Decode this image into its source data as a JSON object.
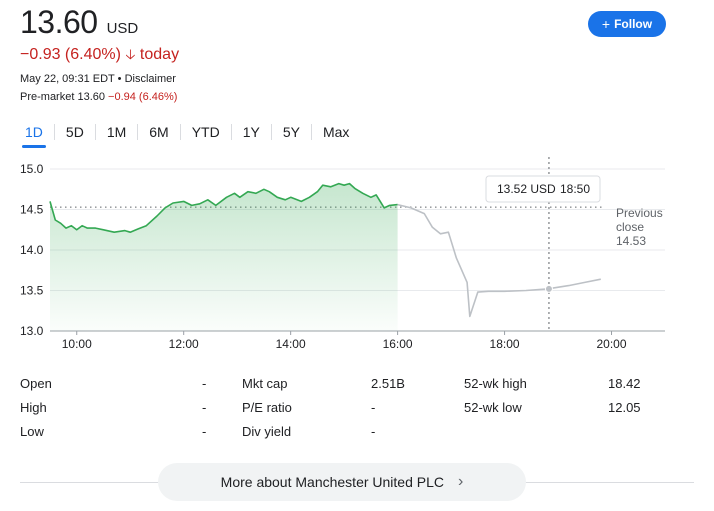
{
  "header": {
    "price": "13.60",
    "currency": "USD",
    "change": "−0.93 (6.40%)",
    "change_arrow": "🡣",
    "change_period": "today",
    "timestamp": "May 22, 09:31 EDT",
    "disclaimer": "Disclaimer",
    "premarket_label": "Pre-market 13.60",
    "premarket_change": "−0.94 (6.46%)",
    "follow_label": "Follow"
  },
  "tabs": [
    {
      "label": "1D",
      "active": true
    },
    {
      "label": "5D",
      "active": false
    },
    {
      "label": "1M",
      "active": false
    },
    {
      "label": "6M",
      "active": false
    },
    {
      "label": "YTD",
      "active": false
    },
    {
      "label": "1Y",
      "active": false
    },
    {
      "label": "5Y",
      "active": false
    },
    {
      "label": "Max",
      "active": false
    }
  ],
  "chart_data": {
    "type": "line",
    "ylim": [
      13.0,
      15.0
    ],
    "yticks": [
      "13.0",
      "13.5",
      "14.0",
      "14.5",
      "15.0"
    ],
    "xlim": [
      9.5,
      21.0
    ],
    "xticks": [
      {
        "value": 10,
        "label": "10:00"
      },
      {
        "value": 12,
        "label": "12:00"
      },
      {
        "value": 14,
        "label": "14:00"
      },
      {
        "value": 16,
        "label": "16:00"
      },
      {
        "value": 18,
        "label": "18:00"
      },
      {
        "value": 20,
        "label": "20:00"
      }
    ],
    "grid": "horizontal",
    "previous_close": {
      "value": 14.53,
      "label_lines": [
        "Previous",
        "close",
        "14.53"
      ]
    },
    "tooltip": {
      "price": "13.52 USD",
      "time": "18:50",
      "x": 18.83,
      "y": 13.52
    },
    "colors": {
      "regular": "#34a853",
      "regular_fill": "#e6f4ea",
      "after_hours": "#bdc1c6"
    },
    "series": [
      {
        "session": "regular",
        "x": [
          9.5,
          9.6,
          9.7,
          9.8,
          9.9,
          10.0,
          10.1,
          10.2,
          10.35,
          10.5,
          10.7,
          10.9,
          11.0,
          11.15,
          11.3,
          11.5,
          11.65,
          11.8,
          12.0,
          12.15,
          12.3,
          12.45,
          12.6,
          12.8,
          12.95,
          13.05,
          13.2,
          13.35,
          13.5,
          13.6,
          13.75,
          13.9,
          14.0,
          14.2,
          14.35,
          14.5,
          14.6,
          14.75,
          14.9,
          15.0,
          15.1,
          15.2,
          15.35,
          15.5,
          15.6,
          15.75,
          15.85,
          16.0
        ],
        "y": [
          14.6,
          14.37,
          14.33,
          14.27,
          14.3,
          14.25,
          14.3,
          14.27,
          14.27,
          14.25,
          14.22,
          14.24,
          14.22,
          14.26,
          14.3,
          14.42,
          14.52,
          14.58,
          14.6,
          14.55,
          14.57,
          14.62,
          14.55,
          14.65,
          14.7,
          14.65,
          14.72,
          14.7,
          14.75,
          14.72,
          14.65,
          14.62,
          14.65,
          14.6,
          14.65,
          14.72,
          14.8,
          14.78,
          14.82,
          14.8,
          14.82,
          14.76,
          14.7,
          14.65,
          14.68,
          14.52,
          14.55,
          14.56
        ]
      },
      {
        "session": "after_hours",
        "x": [
          16.0,
          16.25,
          16.5,
          16.65,
          16.8,
          16.95,
          17.1,
          17.2,
          17.3,
          17.35,
          17.5,
          17.7,
          18.0,
          18.4,
          18.8,
          19.2,
          19.5,
          19.8
        ],
        "y": [
          14.56,
          14.52,
          14.45,
          14.28,
          14.2,
          14.22,
          13.9,
          13.75,
          13.6,
          13.18,
          13.48,
          13.49,
          13.49,
          13.5,
          13.52,
          13.56,
          13.6,
          13.64
        ]
      }
    ]
  },
  "stats": {
    "rows": [
      {
        "l1": "Open",
        "v1": "-",
        "l2": "Mkt cap",
        "v2": "2.51B",
        "l3": "52-wk high",
        "v3": "18.42"
      },
      {
        "l1": "High",
        "v1": "-",
        "l2": "P/E ratio",
        "v2": "-",
        "l3": "52-wk low",
        "v3": "12.05"
      },
      {
        "l1": "Low",
        "v1": "-",
        "l2": "Div yield",
        "v2": "-",
        "l3": "",
        "v3": ""
      }
    ]
  },
  "more_button": {
    "label": "More about Manchester United PLC",
    "chevron": "›"
  }
}
